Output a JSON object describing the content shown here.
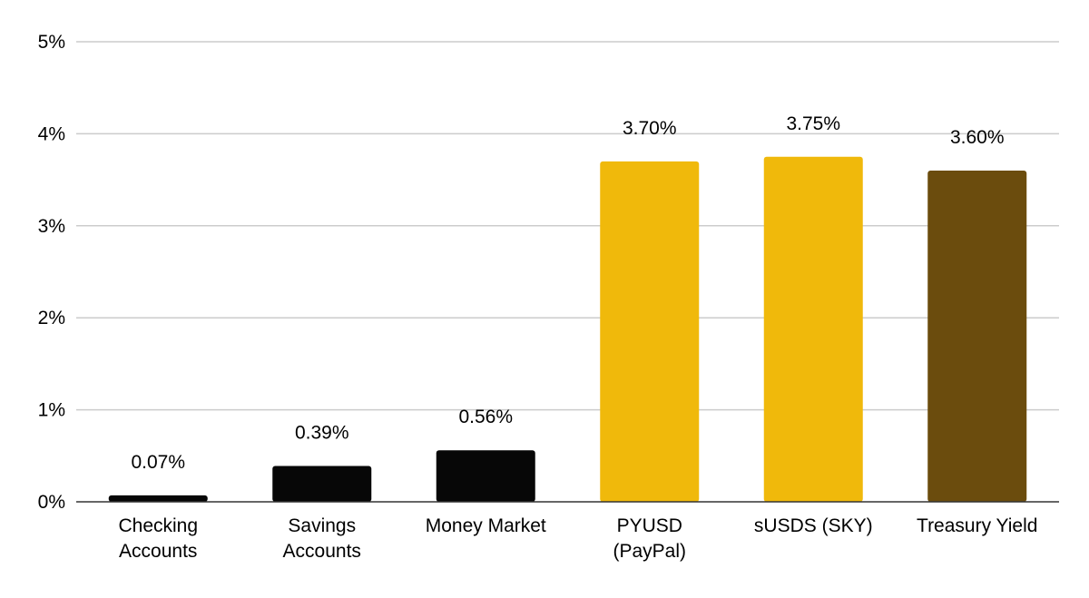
{
  "chart_data": {
    "type": "bar",
    "title": "",
    "xlabel": "",
    "ylabel": "",
    "ylim": [
      0,
      5
    ],
    "y_ticks": [
      {
        "value": 0,
        "label": "0%"
      },
      {
        "value": 1,
        "label": "1%"
      },
      {
        "value": 2,
        "label": "2%"
      },
      {
        "value": 3,
        "label": "3%"
      },
      {
        "value": 4,
        "label": "4%"
      },
      {
        "value": 5,
        "label": "5%"
      }
    ],
    "grid": true,
    "legend": "none",
    "categories": [
      [
        "Checking",
        "Accounts"
      ],
      [
        "Savings",
        "Accounts"
      ],
      [
        "Money Market"
      ],
      [
        "PYUSD",
        "(PayPal)"
      ],
      [
        "sUSDS (SKY)"
      ],
      [
        "Treasury Yield"
      ]
    ],
    "values": [
      0.07,
      0.39,
      0.56,
      3.7,
      3.75,
      3.6
    ],
    "data_labels": [
      "0.07%",
      "0.39%",
      "0.56%",
      "3.70%",
      "3.75%",
      "3.60%"
    ],
    "bar_colors": [
      "#070707",
      "#070707",
      "#070707",
      "#f0b90b",
      "#f0b90b",
      "#6b4c0d"
    ],
    "colors": {
      "grid": "#cccccc",
      "axis": "#333333",
      "text": "#000000"
    }
  }
}
